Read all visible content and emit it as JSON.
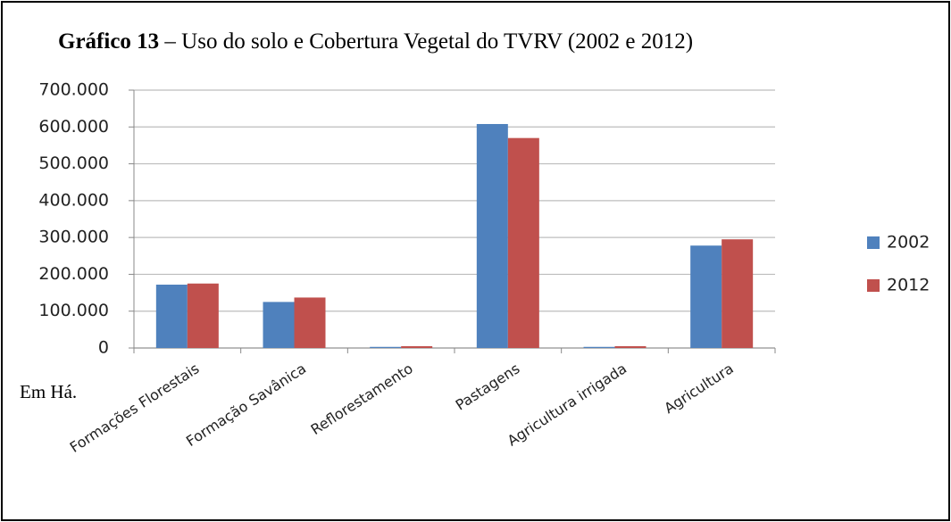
{
  "chart_data": {
    "type": "bar",
    "title_bold": "Gráfico 13",
    "title": "– Uso do solo e Cobertura Vegetal do TVRV (2002 e 2012)",
    "annotation": "Em Há.",
    "categories": [
      "Formações Florestais",
      "Formação Savânica",
      "Reflorestamento",
      "Pastagens",
      "Agricultura irrigada",
      "Agricultura"
    ],
    "series": [
      {
        "name": "2002",
        "color": "#4f81bd",
        "values": [
          172000,
          125000,
          3000,
          608000,
          3000,
          278000
        ]
      },
      {
        "name": "2012",
        "color": "#c0504d",
        "values": [
          175000,
          137000,
          5000,
          570000,
          5000,
          295000
        ]
      }
    ],
    "ylim": [
      0,
      700000
    ],
    "yticks": [
      0,
      {
        "value": 100000,
        "label": "100.000"
      },
      {
        "value": 200000,
        "label": "200.000"
      },
      {
        "value": 300000,
        "label": "300.000"
      },
      {
        "value": 400000,
        "label": "400.000"
      },
      {
        "value": 500000,
        "label": "500.000"
      },
      {
        "value": 600000,
        "label": "600.000"
      },
      {
        "value": 700000,
        "label": "700.000"
      }
    ],
    "grid": true,
    "legend": "right"
  }
}
